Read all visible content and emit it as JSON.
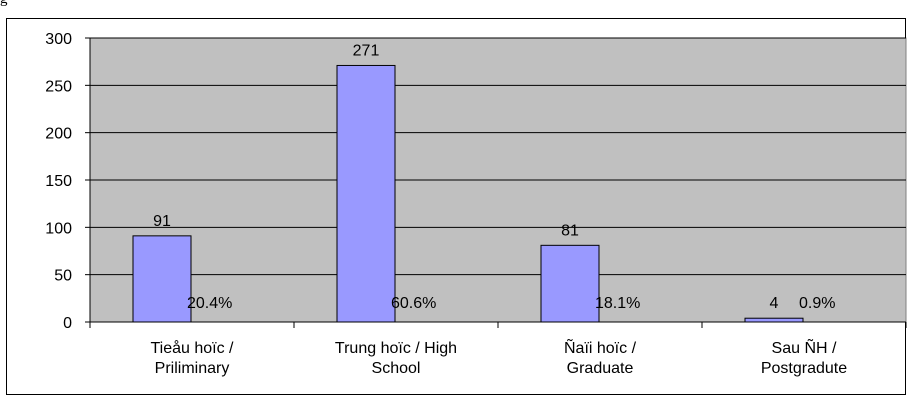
{
  "top_text": "g",
  "chart_data": {
    "type": "bar",
    "categories": [
      [
        "Tieåu hoïc /",
        "Priliminary"
      ],
      [
        "Trung hoïc / High",
        "School"
      ],
      [
        "Ñaïi hoïc /",
        "Graduate"
      ],
      [
        "Sau ÑH /",
        "Postgradute"
      ]
    ],
    "values": [
      91,
      271,
      81,
      4
    ],
    "data_labels": [
      "91",
      "271",
      "81",
      "4"
    ],
    "percent_labels": [
      "20.4%",
      "60.6%",
      "18.1%",
      "0.9%"
    ],
    "ylim": [
      0,
      300
    ],
    "yticks": [
      0,
      50,
      100,
      150,
      200,
      250,
      300
    ],
    "grid": true,
    "colors": {
      "bar": "#9999ff",
      "plot_bg": "#c0c0c0",
      "grid": "#000000"
    }
  }
}
